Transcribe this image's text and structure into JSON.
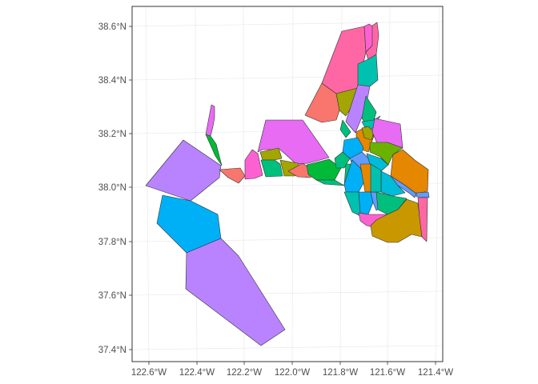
{
  "chart_data": {
    "type": "map",
    "xlabel": "",
    "ylabel": "",
    "x_ticks": [
      "122.6°W",
      "122.4°W",
      "122.2°W",
      "122.0°W",
      "121.8°W",
      "121.6°W",
      "121.4°W"
    ],
    "y_ticks": [
      "38.6°N",
      "38.4°N",
      "38.2°N",
      "38.0°N",
      "37.8°N",
      "37.6°N",
      "37.4°N"
    ],
    "xlim": [
      -122.65,
      -121.27
    ],
    "ylim": [
      37.35,
      38.68
    ],
    "grid": true,
    "legend": "none",
    "fill_colors": [
      "#F8766D",
      "#E58700",
      "#C99800",
      "#A3A500",
      "#6BB100",
      "#00BA38",
      "#00BF7D",
      "#00C0AF",
      "#00BCD8",
      "#00B0F6",
      "#619CFF",
      "#B983FF",
      "#E76BF3",
      "#FD61D1",
      "#FF67A4"
    ],
    "outline_color": "#333333",
    "panel_border_color": "#333333",
    "grid_color": "#e6e6e6"
  }
}
